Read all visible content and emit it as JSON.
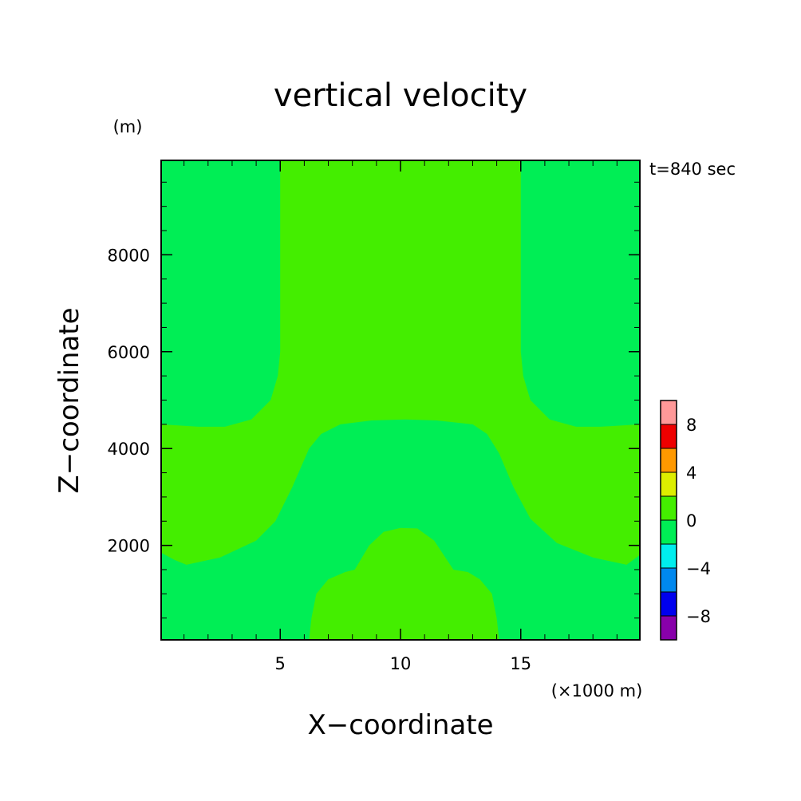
{
  "chart_data": {
    "type": "heatmap",
    "title": "vertical velocity",
    "xlabel": "X−coordinate",
    "ylabel": "Z−coordinate",
    "x_unit": "(×1000 m)",
    "y_unit": "(m)",
    "time_label": "t=840 sec",
    "xlim": [
      0.05,
      19.95
    ],
    "ylim": [
      50,
      9950
    ],
    "x_ticks": [
      5,
      10,
      15
    ],
    "x_tick_labels": [
      "5",
      "10",
      "15"
    ],
    "y_ticks": [
      2000,
      4000,
      6000,
      8000
    ],
    "y_tick_labels": [
      "2000",
      "4000",
      "6000",
      "8000"
    ],
    "colorbar": {
      "levels": [
        -10,
        -8,
        -6,
        -4,
        -2,
        0,
        2,
        4,
        6,
        8,
        10
      ],
      "colors": [
        "#8800aa",
        "#0000ee",
        "#0088ee",
        "#00eeee",
        "#00ee55",
        "#44ee00",
        "#ddee00",
        "#ff9900",
        "#ee0000",
        "#ff9999"
      ],
      "tick_values": [
        -8,
        -4,
        0,
        4,
        8
      ],
      "tick_labels": [
        "−8",
        "−4",
        "0",
        "4",
        "8"
      ]
    },
    "regions": [
      {
        "level_range": [
          0,
          2
        ],
        "color": "#44ee00",
        "boundary": [
          [
            5.0,
            9950
          ],
          [
            5.0,
            8000
          ],
          [
            5.0,
            6000
          ],
          [
            4.9,
            5500
          ],
          [
            4.6,
            5000
          ],
          [
            3.8,
            4600
          ],
          [
            2.7,
            4450
          ],
          [
            1.6,
            4450
          ],
          [
            0.05,
            4500
          ],
          [
            0.05,
            1850
          ],
          [
            0.6,
            1700
          ],
          [
            1.1,
            1600
          ],
          [
            2.5,
            1750
          ],
          [
            4.0,
            2100
          ],
          [
            4.8,
            2500
          ],
          [
            5.5,
            3200
          ],
          [
            6.2,
            4000
          ],
          [
            6.7,
            4300
          ],
          [
            7.5,
            4500
          ],
          [
            8.8,
            4580
          ],
          [
            10.2,
            4600
          ],
          [
            11.5,
            4580
          ],
          [
            13.0,
            4500
          ],
          [
            13.6,
            4300
          ],
          [
            14.1,
            3900
          ],
          [
            14.7,
            3200
          ],
          [
            15.4,
            2550
          ],
          [
            16.5,
            2050
          ],
          [
            18.0,
            1750
          ],
          [
            19.4,
            1600
          ],
          [
            19.95,
            1800
          ],
          [
            19.95,
            4500
          ],
          [
            18.3,
            4450
          ],
          [
            17.3,
            4450
          ],
          [
            16.2,
            4600
          ],
          [
            15.4,
            5000
          ],
          [
            15.1,
            5500
          ],
          [
            15.0,
            6000
          ],
          [
            15.0,
            8000
          ],
          [
            15.0,
            9950
          ]
        ]
      },
      {
        "level_range": [
          0,
          2
        ],
        "color": "#44ee00",
        "boundary": [
          [
            6.2,
            50
          ],
          [
            6.3,
            500
          ],
          [
            6.5,
            1000
          ],
          [
            7.0,
            1300
          ],
          [
            7.7,
            1450
          ],
          [
            8.1,
            1500
          ],
          [
            8.7,
            2000
          ],
          [
            9.3,
            2280
          ],
          [
            10.0,
            2360
          ],
          [
            10.7,
            2350
          ],
          [
            11.4,
            2100
          ],
          [
            12.2,
            1500
          ],
          [
            12.8,
            1450
          ],
          [
            13.3,
            1300
          ],
          [
            13.8,
            1000
          ],
          [
            14.0,
            500
          ],
          [
            14.1,
            50
          ]
        ]
      }
    ]
  }
}
